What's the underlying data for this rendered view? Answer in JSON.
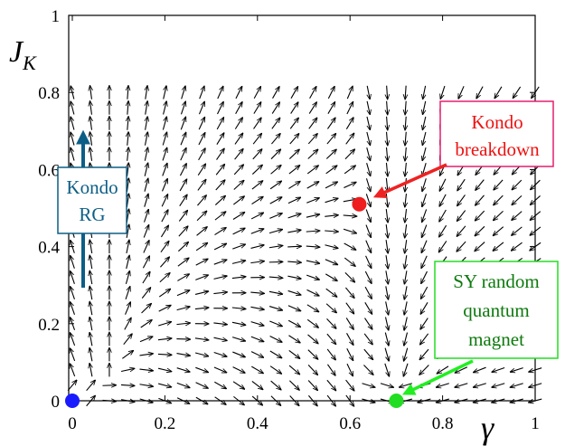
{
  "chart_data": {
    "type": "quiver",
    "xlabel": "γ",
    "ylabel_main": "J",
    "ylabel_sub": "K",
    "xlim": [
      0,
      1
    ],
    "ylim": [
      0,
      1
    ],
    "xticks": [
      "0",
      "0.2",
      "0.4",
      "0.6",
      "0.8",
      "1"
    ],
    "yticks": [
      "0",
      "0.2",
      "0.4",
      "0.6",
      "0.8",
      "1"
    ],
    "xtick_values": [
      0,
      0.2,
      0.4,
      0.6,
      0.8,
      1
    ],
    "ytick_values": [
      0,
      0.2,
      0.4,
      0.6,
      0.8,
      1
    ],
    "grid": false,
    "field": {
      "nx": 26,
      "ny": 21,
      "x_start": 0,
      "x_step": 0.04,
      "y_start": 0,
      "y_step": 0.04,
      "description_of_flow": "RG flow of (gamma, J_K)"
    },
    "fixed_points": [
      {
        "name": "origin",
        "x": 0.0,
        "y": 0.0,
        "color": "#1a1aff"
      },
      {
        "name": "kondo-breakdown",
        "x": 0.62,
        "y": 0.51,
        "color": "#ee1c1c"
      },
      {
        "name": "sy-random-quantum-magnet",
        "x": 0.7,
        "y": 0.0,
        "color": "#22dd22"
      }
    ],
    "annotations": {
      "kondo_rg": {
        "lines": [
          "Kondo",
          "RG"
        ],
        "color": "#0c5e86"
      },
      "kondo_breakdown": {
        "lines": [
          "Kondo",
          "breakdown"
        ],
        "color": "#e61e6e",
        "text_color": "#ee1111"
      },
      "sy_magnet": {
        "lines": [
          "SY random",
          "quantum",
          "magnet"
        ],
        "color": "#22dd22",
        "text_color": "#0c7a0c"
      }
    }
  }
}
